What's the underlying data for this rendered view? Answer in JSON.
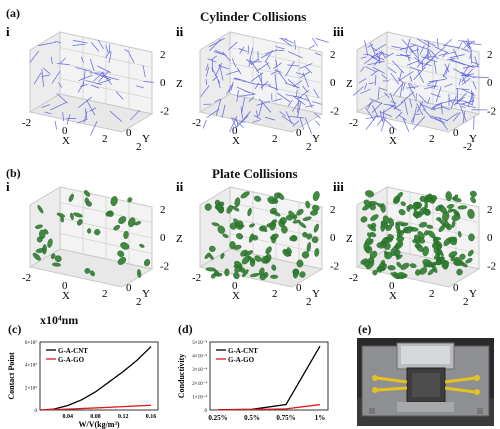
{
  "panels": {
    "a": {
      "label": "(a)",
      "title": "Cylinder Collisions",
      "sub": [
        "i",
        "ii",
        "iii"
      ]
    },
    "b": {
      "label": "(b)",
      "title": "Plate Collisions",
      "sub": [
        "i",
        "ii",
        "iii"
      ]
    },
    "c": {
      "label": "(c)"
    },
    "d": {
      "label": "(d)"
    },
    "e": {
      "label": "(e)"
    }
  },
  "axis3d": {
    "x": "X",
    "y": "Y",
    "z": "Z",
    "ticks": [
      "-2",
      "0",
      "2"
    ],
    "z_ticks": [
      "2",
      "0",
      "-2"
    ]
  },
  "scale_note": "x10⁴nm",
  "colors": {
    "cylinder": "#5a5ee0",
    "plate": "#2e7d2e",
    "cnt": "#000000",
    "go": "#e01b1b"
  },
  "chart_data": [
    {
      "type": "line",
      "xlabel": "W/V(kg/m³)",
      "ylabel": "Contact Point",
      "x_ticks": [
        "0.04",
        "0.08",
        "0.12",
        "0.16"
      ],
      "y_ticks": [
        "0",
        "2×10⁵",
        "4×10⁵",
        "6×10⁵"
      ],
      "xlim": [
        0,
        0.17
      ],
      "ylim": [
        0,
        600000
      ],
      "series": [
        {
          "name": "G-A-CNT",
          "x": [
            0.0,
            0.02,
            0.04,
            0.06,
            0.08,
            0.1,
            0.12,
            0.14,
            0.16
          ],
          "y": [
            0,
            8000,
            40000,
            90000,
            160000,
            250000,
            340000,
            440000,
            560000
          ]
        },
        {
          "name": "G-A-GO",
          "x": [
            0.0,
            0.04,
            0.08,
            0.12,
            0.16
          ],
          "y": [
            0,
            8000,
            18000,
            30000,
            42000
          ]
        }
      ]
    },
    {
      "type": "line",
      "xlabel": "",
      "ylabel": "Conductivity",
      "categories": [
        "0.25%",
        "0.5%",
        "0.75%",
        "1%"
      ],
      "y_ticks": [
        "0",
        "1×10⁻⁴",
        "2×10⁻⁴",
        "3×10⁻⁴",
        "4×10⁻⁴",
        "5×10⁻⁴"
      ],
      "ylim": [
        0,
        0.0005
      ],
      "series": [
        {
          "name": "G-A-CNT",
          "values": [
            2e-06,
            5e-06,
            4e-05,
            0.00047
          ]
        },
        {
          "name": "G-A-GO",
          "values": [
            1e-06,
            3e-06,
            8e-06,
            4e-05
          ]
        }
      ]
    }
  ]
}
